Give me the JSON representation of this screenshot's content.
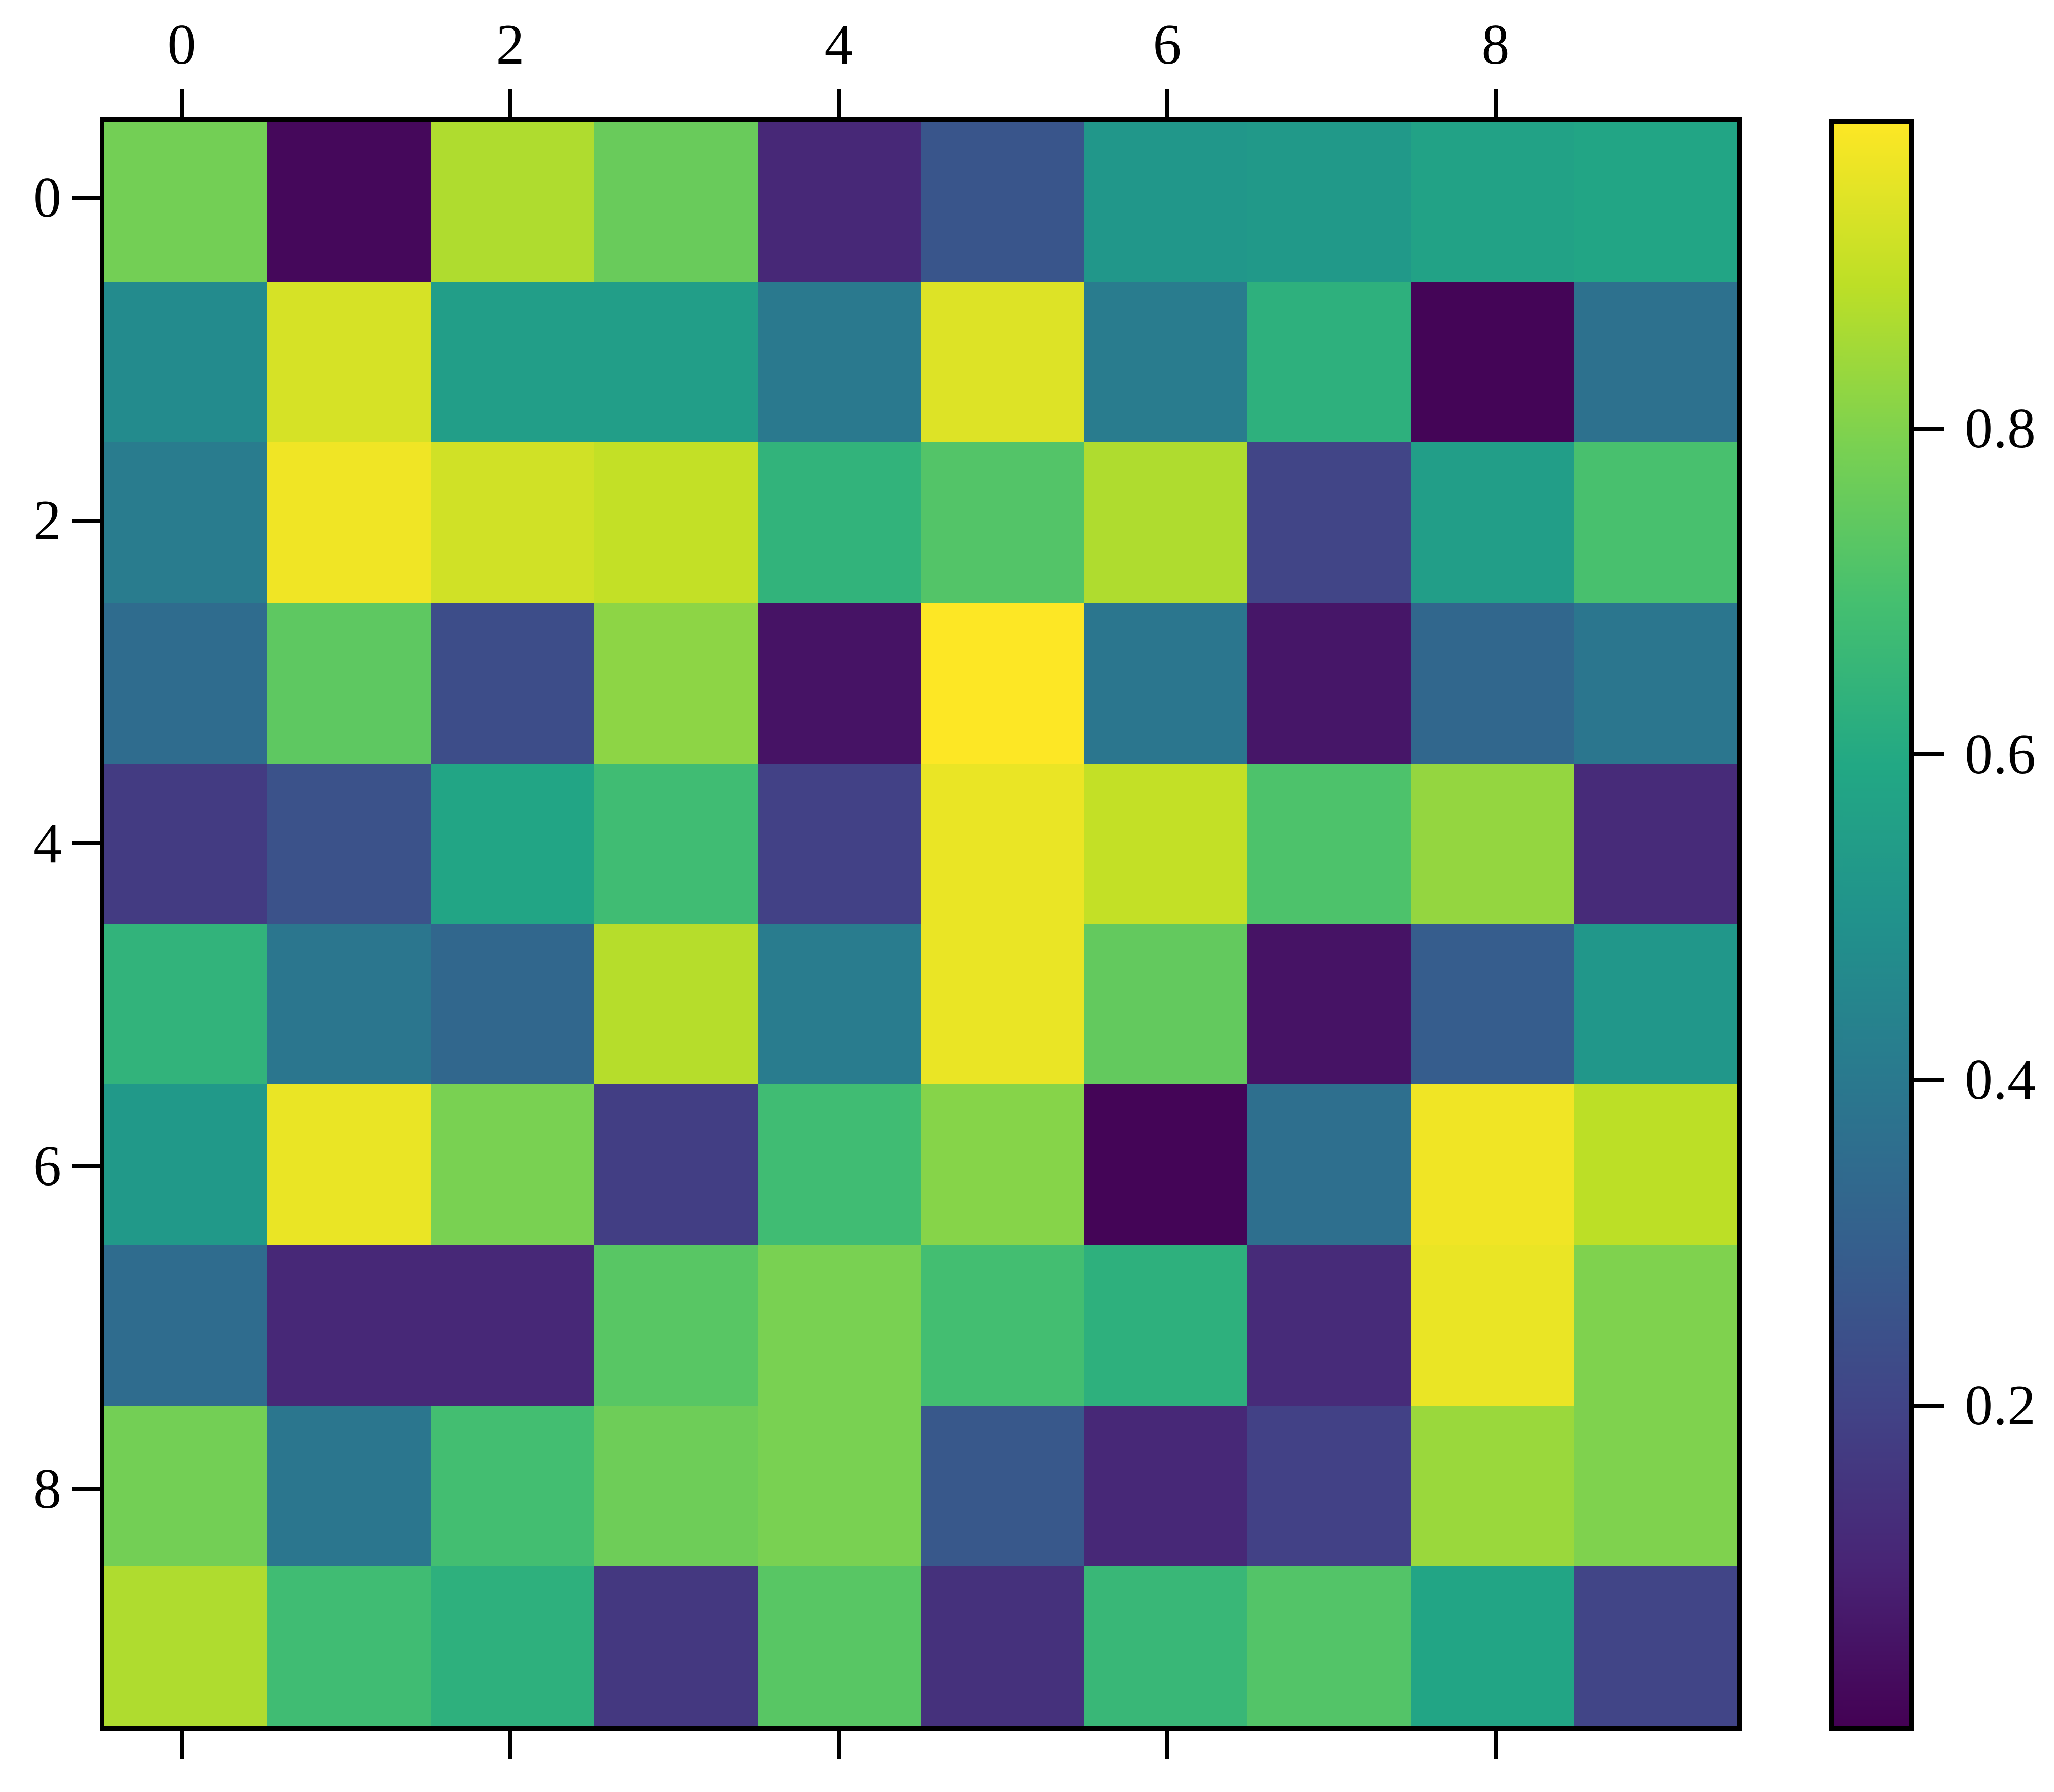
{
  "chart_data": {
    "type": "heatmap",
    "title": "",
    "xlabel": "",
    "ylabel": "",
    "colormap": "viridis",
    "vmin": 0.0,
    "vmax": 0.99,
    "grid": {
      "rows": 10,
      "cols": 10
    },
    "x_tick_labels": [
      "0",
      "2",
      "4",
      "6",
      "8"
    ],
    "x_tick_positions": [
      0,
      2,
      4,
      6,
      8
    ],
    "y_tick_labels": [
      "0",
      "2",
      "4",
      "6",
      "8"
    ],
    "y_tick_positions": [
      0,
      2,
      4,
      6,
      8
    ],
    "colorbar": {
      "tick_labels": [
        "0.8",
        "0.6",
        "0.4",
        "0.2"
      ],
      "tick_values": [
        0.8,
        0.6,
        0.4,
        0.2
      ],
      "position": "right"
    },
    "values": [
      [
        0.78,
        0.02,
        0.87,
        0.76,
        0.11,
        0.26,
        0.52,
        0.53,
        0.57,
        0.58
      ],
      [
        0.47,
        0.93,
        0.55,
        0.55,
        0.4,
        0.94,
        0.41,
        0.63,
        0.01,
        0.37
      ],
      [
        0.41,
        0.97,
        0.92,
        0.9,
        0.64,
        0.72,
        0.87,
        0.2,
        0.55,
        0.7
      ],
      [
        0.35,
        0.74,
        0.23,
        0.82,
        0.05,
        0.99,
        0.39,
        0.06,
        0.33,
        0.39
      ],
      [
        0.17,
        0.25,
        0.58,
        0.68,
        0.19,
        0.96,
        0.9,
        0.71,
        0.83,
        0.12
      ],
      [
        0.64,
        0.39,
        0.33,
        0.88,
        0.41,
        0.96,
        0.75,
        0.05,
        0.29,
        0.52
      ],
      [
        0.53,
        0.96,
        0.79,
        0.18,
        0.68,
        0.81,
        0.01,
        0.36,
        0.97,
        0.89
      ],
      [
        0.35,
        0.11,
        0.11,
        0.73,
        0.79,
        0.69,
        0.63,
        0.12,
        0.96,
        0.8
      ],
      [
        0.78,
        0.39,
        0.69,
        0.77,
        0.79,
        0.27,
        0.11,
        0.19,
        0.84,
        0.8
      ],
      [
        0.87,
        0.68,
        0.63,
        0.16,
        0.73,
        0.14,
        0.66,
        0.72,
        0.58,
        0.2
      ]
    ]
  },
  "colors": {
    "background": "#ffffff",
    "frame": "#000000",
    "viridis_stops": [
      "#440154",
      "#482475",
      "#414487",
      "#355f8d",
      "#2a788e",
      "#21918c",
      "#22a884",
      "#44bf70",
      "#7ad151",
      "#bddf26",
      "#fde725"
    ]
  }
}
